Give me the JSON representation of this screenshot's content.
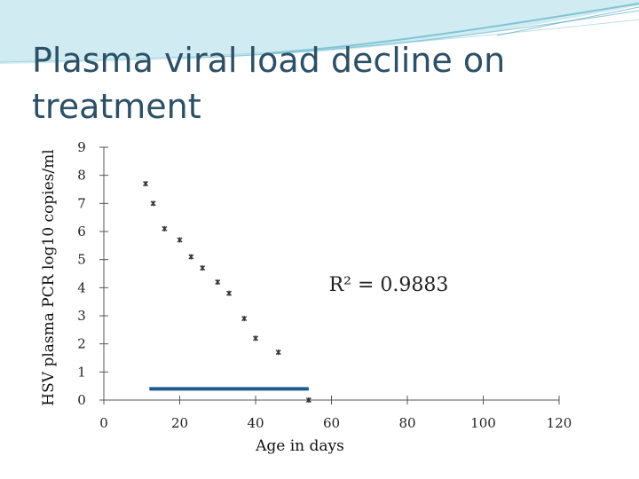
{
  "slide": {
    "title": "Plasma viral load decline on treatment"
  },
  "colors": {
    "title": "#2c5066",
    "banner": "#5fb3c8",
    "treatment_bar": "#1f5a8b",
    "axis": "#555555",
    "marker": "#333333"
  },
  "chart_data": {
    "type": "scatter",
    "title": "",
    "xlabel": "Age in days",
    "ylabel": "HSV plasma PCR log10 copies/ml",
    "xlim": [
      0,
      120
    ],
    "ylim": [
      0,
      9
    ],
    "xticks": [
      0,
      20,
      40,
      60,
      80,
      100,
      120
    ],
    "yticks": [
      0,
      1,
      2,
      3,
      4,
      5,
      6,
      7,
      8,
      9
    ],
    "series": [
      {
        "name": "Plasma viral load",
        "x": [
          11,
          13,
          16,
          20,
          23,
          26,
          30,
          33,
          37,
          40,
          46,
          54
        ],
        "y": [
          7.7,
          7.0,
          6.1,
          5.7,
          5.1,
          4.7,
          4.2,
          3.8,
          2.9,
          2.2,
          1.7,
          0
        ]
      }
    ],
    "treatment_period": {
      "x_start": 12,
      "x_end": 54,
      "y": 0.4
    },
    "annotation": "R² = 0.9883"
  }
}
